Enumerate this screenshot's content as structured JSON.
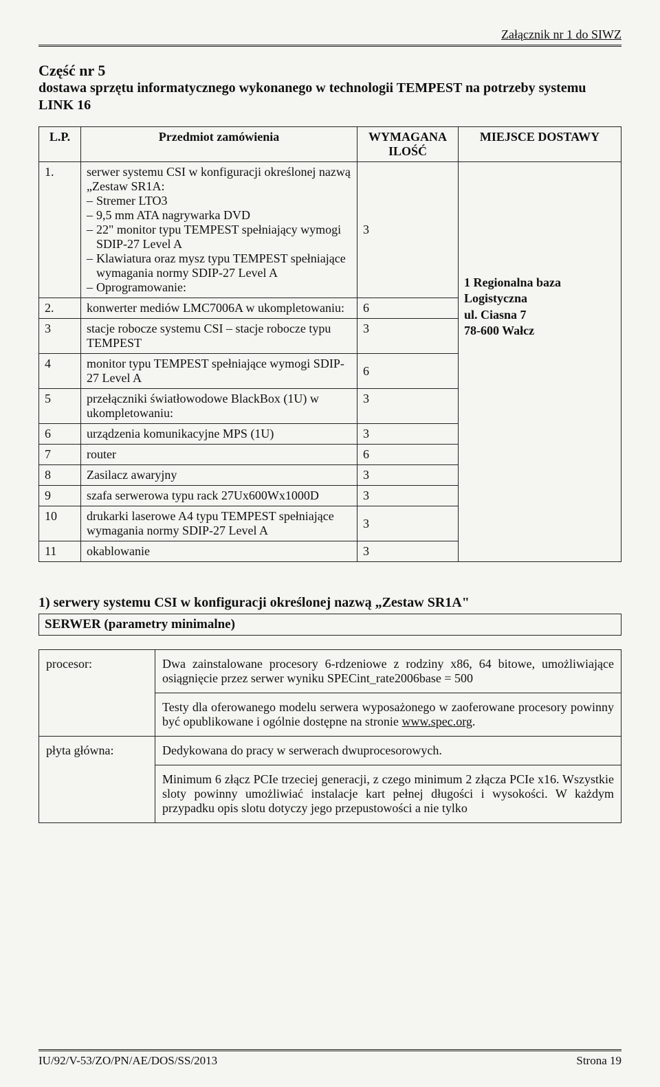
{
  "header": {
    "attachment": "Załącznik nr 1 do SIWZ"
  },
  "title": {
    "part": "Część nr 5",
    "desc": "dostawa sprzętu informatycznego wykonanego w technologii TEMPEST na potrzeby systemu LINK 16"
  },
  "table": {
    "head": {
      "lp": "L.P.",
      "subject": "Przedmiot zamówienia",
      "qty": "WYMAGANA ILOŚĆ",
      "loc": "MIEJSCE DOSTAWY"
    },
    "rows": [
      {
        "lp": "1.",
        "subject_lead": "serwer systemu CSI w konfiguracji określonej nazwą „Zestaw SR1A:",
        "items": [
          "Stremer LTO3",
          "9,5 mm ATA nagrywarka DVD",
          "22\" monitor typu TEMPEST spełniający wymogi SDIP-27 Level A",
          "Klawiatura oraz mysz typu TEMPEST spełniające wymagania normy SDIP-27 Level A",
          "Oprogramowanie:"
        ],
        "qty": "3"
      },
      {
        "lp": "2.",
        "subject": "konwerter mediów LMC7006A w ukompletowaniu:",
        "qty": "6"
      },
      {
        "lp": "3",
        "subject": "stacje robocze systemu CSI – stacje robocze typu TEMPEST",
        "qty": "3"
      },
      {
        "lp": "4",
        "subject": "monitor typu TEMPEST spełniające wymogi SDIP-27 Level A",
        "qty": "6"
      },
      {
        "lp": "5",
        "subject": "przełączniki światłowodowe BlackBox (1U) w ukompletowaniu:",
        "qty": "3"
      },
      {
        "lp": "6",
        "subject": "urządzenia komunikacyjne MPS (1U)",
        "qty": "3"
      },
      {
        "lp": "7",
        "subject": "router",
        "qty": "6"
      },
      {
        "lp": "8",
        "subject": "Zasilacz awaryjny",
        "qty": "3"
      },
      {
        "lp": "9",
        "subject": "szafa serwerowa typu rack 27Ux600Wx1000D",
        "qty": "3"
      },
      {
        "lp": "10",
        "subject": "drukarki laserowe A4 typu TEMPEST spełniające wymagania normy SDIP-27 Level A",
        "qty": "3"
      },
      {
        "lp": "11",
        "subject": "okablowanie",
        "qty": "3"
      }
    ],
    "location": {
      "line1": "1 Regionalna baza",
      "line2": "Logistyczna",
      "line3": "ul. Ciasna 7",
      "line4": "78-600 Wałcz"
    }
  },
  "section": {
    "heading": "1) serwery systemu CSI w konfiguracji określonej nazwą „Zestaw SR1A\"",
    "subhead": "SERWER (parametry minimalne)"
  },
  "spec": {
    "rows": [
      {
        "label": "procesor:",
        "paras": [
          "Dwa zainstalowane procesory 6-rdzeniowe z rodziny x86, 64 bitowe, umożliwiające osiągnięcie przez serwer wyniku SPECint_rate2006base = 500",
          "Testy dla oferowanego modelu serwera wyposażonego w zaoferowane procesory powinny być opublikowane i ogólnie dostępne na stronie "
        ],
        "link": "www.spec.org"
      },
      {
        "label": "płyta główna:",
        "paras": [
          "Dedykowana do pracy w serwerach dwuprocesorowych.",
          "Minimum 6 złącz PCIe trzeciej generacji, z czego minimum 2 złącza PCIe x16. Wszystkie sloty powinny umożliwiać instalacje kart pełnej długości i wysokości. W każdym przypadku opis slotu dotyczy jego przepustowości a nie tylko"
        ]
      }
    ]
  },
  "footer": {
    "left": "IU/92/V-53/ZO/PN/AE/DOS/SS/2013",
    "right": "Strona 19"
  }
}
